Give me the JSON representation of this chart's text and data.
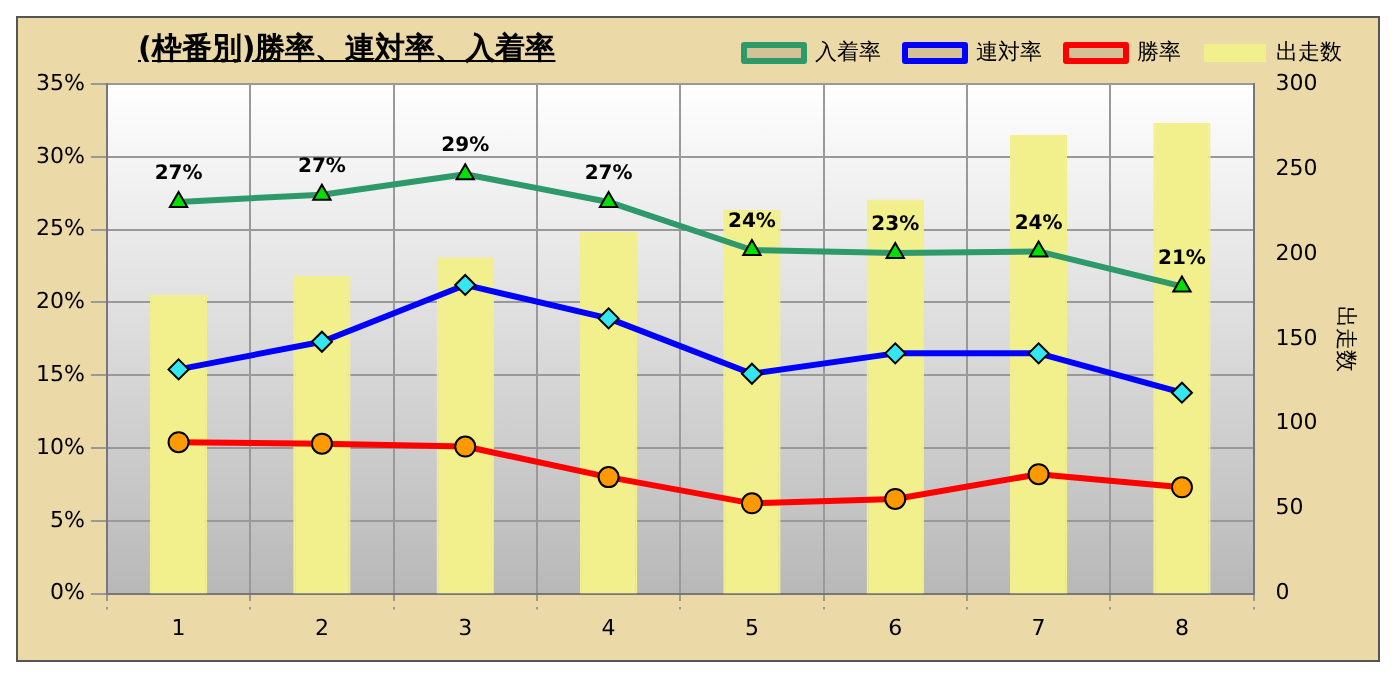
{
  "chart_data": {
    "type": "bar",
    "title": "(枠番別)勝率、連対率、入着率",
    "y2label": "出走数",
    "categories": [
      "1",
      "2",
      "3",
      "4",
      "5",
      "6",
      "7",
      "8"
    ],
    "series": [
      {
        "name": "出走数",
        "axis": "y2",
        "color": "#f2f08c",
        "values": [
          176,
          187,
          198,
          213,
          226,
          232,
          270,
          277
        ]
      },
      {
        "name": "入着率",
        "type": "line",
        "marker": "triangle",
        "color": "#2e9a6a",
        "values": [
          26.9,
          27.4,
          28.8,
          26.9,
          23.6,
          23.4,
          23.5,
          21.1
        ],
        "value_labels": [
          "27%",
          "27%",
          "29%",
          "27%",
          "24%",
          "23%",
          "24%",
          "21%"
        ]
      },
      {
        "name": "連対率",
        "type": "line",
        "marker": "diamond",
        "color": "#0000ff",
        "values": [
          15.4,
          17.3,
          21.2,
          18.9,
          15.1,
          16.5,
          16.5,
          13.8
        ]
      },
      {
        "name": "勝率",
        "type": "line",
        "marker": "circle",
        "color": "#ff0000",
        "values": [
          10.4,
          10.3,
          10.1,
          8.0,
          6.2,
          6.5,
          8.2,
          7.3
        ]
      }
    ],
    "ylim": [
      0,
      35
    ],
    "yticks": [
      {
        "value": 0,
        "label": "0%"
      },
      {
        "value": 5,
        "label": "5%"
      },
      {
        "value": 10,
        "label": "10%"
      },
      {
        "value": 15,
        "label": "15%"
      },
      {
        "value": 20,
        "label": "20%"
      },
      {
        "value": 25,
        "label": "25%"
      },
      {
        "value": 30,
        "label": "30%"
      },
      {
        "value": 35,
        "label": "35%"
      }
    ],
    "y2lim": [
      0,
      300
    ],
    "y2ticks": [
      0,
      50,
      100,
      150,
      200,
      250,
      300
    ],
    "grid": true,
    "legend": "top right"
  }
}
